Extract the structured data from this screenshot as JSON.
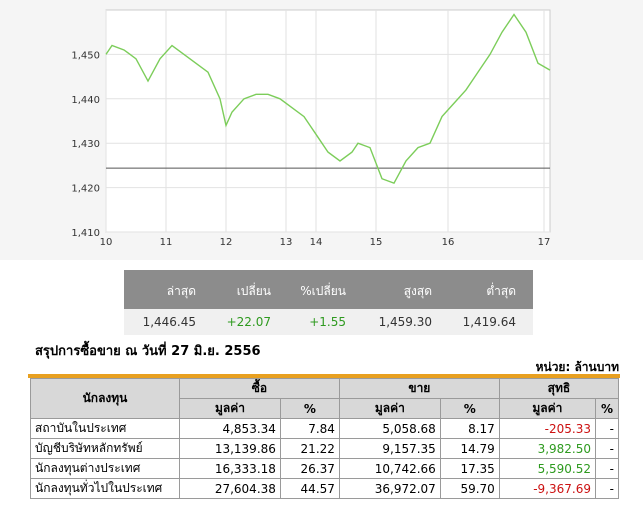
{
  "chart_data": {
    "type": "line",
    "x_ticks": [
      "10",
      "11",
      "12",
      "13",
      "14",
      "15",
      "16",
      "17"
    ],
    "y_ticks": [
      "1,410",
      "1,420",
      "1,430",
      "1,440",
      "1,450"
    ],
    "ylim": [
      1410,
      1460
    ],
    "reference_line": 1424.38,
    "line_color": "#7ccd5a",
    "series": [
      {
        "values": [
          [
            10.0,
            1450
          ],
          [
            10.1,
            1452
          ],
          [
            10.3,
            1451
          ],
          [
            10.5,
            1449
          ],
          [
            10.7,
            1444
          ],
          [
            10.9,
            1449
          ],
          [
            11.1,
            1452
          ],
          [
            11.3,
            1450
          ],
          [
            11.5,
            1448
          ],
          [
            11.7,
            1446
          ],
          [
            11.9,
            1440
          ],
          [
            12.0,
            1434
          ],
          [
            12.1,
            1437
          ],
          [
            12.3,
            1440
          ],
          [
            12.5,
            1441
          ],
          [
            12.7,
            1441
          ],
          [
            12.9,
            1440
          ],
          [
            13.1,
            1438
          ],
          [
            13.3,
            1436
          ],
          [
            13.5,
            1432
          ],
          [
            13.7,
            1428
          ],
          [
            13.9,
            1426
          ],
          [
            14.1,
            1428
          ],
          [
            14.2,
            1430
          ],
          [
            14.4,
            1429
          ],
          [
            14.6,
            1422
          ],
          [
            14.8,
            1421
          ],
          [
            15.0,
            1426
          ],
          [
            15.2,
            1429
          ],
          [
            15.4,
            1430
          ],
          [
            15.6,
            1436
          ],
          [
            15.8,
            1439
          ],
          [
            16.0,
            1442
          ],
          [
            16.2,
            1446
          ],
          [
            16.4,
            1450
          ],
          [
            16.6,
            1455
          ],
          [
            16.8,
            1459
          ],
          [
            17.0,
            1455
          ],
          [
            17.2,
            1448
          ],
          [
            17.4,
            1446.45
          ]
        ]
      }
    ]
  },
  "quote": {
    "headers": [
      "ล่าสุด",
      "เปลี่ยน",
      "%เปลี่ยน",
      "สูงสุด",
      "ต่ำสุด"
    ],
    "values": [
      "1,446.45",
      "+22.07",
      "+1.55",
      "1,459.30",
      "1,419.64"
    ]
  },
  "summary": {
    "title": "สรุปการซื้อขาย ณ วันที่ 27 มิ.ย. 2556",
    "unit": "หน่วย: ล้านบาท",
    "header_investor": "นักลงทุน",
    "header_buy": "ซื้อ",
    "header_sell": "ขาย",
    "header_net": "สุทธิ",
    "sub_value": "มูลค่า",
    "sub_pct": "%",
    "rows": [
      {
        "name": "สถาบันในประเทศ",
        "buy_value": "4,853.34",
        "buy_pct": "7.84",
        "sell_value": "5,058.68",
        "sell_pct": "8.17",
        "net_value": "-205.33",
        "net_pct": "-"
      },
      {
        "name": "บัญชีบริษัทหลักทรัพย์",
        "buy_value": "13,139.86",
        "buy_pct": "21.22",
        "sell_value": "9,157.35",
        "sell_pct": "14.79",
        "net_value": "3,982.50",
        "net_pct": "-"
      },
      {
        "name": "นักลงทุนต่างประเทศ",
        "buy_value": "16,333.18",
        "buy_pct": "26.37",
        "sell_value": "10,742.66",
        "sell_pct": "17.35",
        "net_value": "5,590.52",
        "net_pct": "-"
      },
      {
        "name": "นักลงทุนทั่วไปในประเทศ",
        "buy_value": "27,604.38",
        "buy_pct": "44.57",
        "sell_value": "36,972.07",
        "sell_pct": "59.70",
        "net_value": "-9,367.69",
        "net_pct": "-"
      }
    ]
  }
}
